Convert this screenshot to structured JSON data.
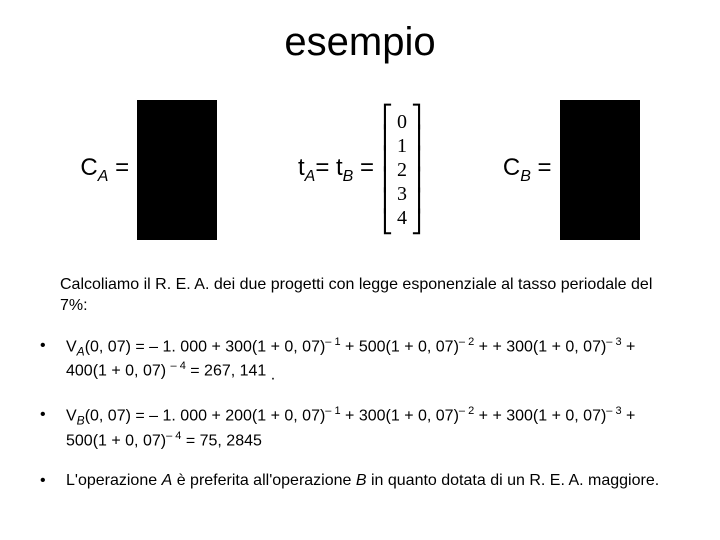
{
  "title": "esempio",
  "equation": {
    "ca_label_html": "C<span class='sub'>A</span> =",
    "t_label_html": "t<span class='sub'>A</span>= t<span class='sub'>B</span>  =",
    "vector_values": [
      "0",
      "1",
      "2",
      "3",
      "4"
    ],
    "cb_label_html": "C<span class='sub'>B</span> ="
  },
  "intro": "Calcoliamo il R. E. A. dei due progetti con legge esponenziale al tasso periodale del 7%:",
  "bullets": [
    "V<span class='subi'>A</span>(0, 07) = – 1. 000 + 300(1 + 0, 07)<span class='sup'>– 1</span> + 500(1 + 0, 07)<span class='sup'>– 2</span> + + 300(1 + 0, 07)<span class='sup'>– 3</span> + 400(1 + 0, 07) <span class='sup'>– 4</span> = 267, 141 <span style='vertical-align:sub'>.</span>",
    "V<span class='subi'>B</span>(0, 07) = – 1. 000 + 200(1 + 0, 07)<span class='sup'>– 1</span> + 300(1 + 0, 07)<span class='sup'>– 2</span> + + 300(1 + 0, 07)<span class='sup'>– 3</span> +  500(1 + 0, 07)<span class='sup'>– 4</span> = 75, 2845",
    "L'operazione <i>A</i> è preferita all'operazione <i>B</i> in quanto dotata di un R. E. A. maggiore."
  ],
  "colors": {
    "background": "#ffffff",
    "text": "#000000",
    "box": "#000000"
  }
}
